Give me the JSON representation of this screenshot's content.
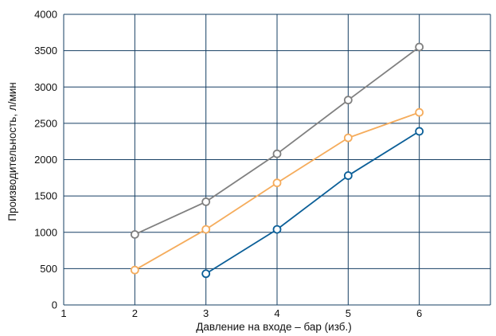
{
  "chart_data": {
    "type": "line",
    "title": "",
    "xlabel": "Давление на входе – бар (изб.)",
    "ylabel": "Производительность, л/мин",
    "xlim": [
      1,
      7
    ],
    "ylim": [
      0,
      4000
    ],
    "x_ticks": [
      1,
      2,
      3,
      4,
      5,
      6
    ],
    "y_ticks": [
      0,
      500,
      1000,
      1500,
      2000,
      2500,
      3000,
      3500,
      4000
    ],
    "grid": true,
    "legend": "none",
    "series": [
      {
        "color": "#808080",
        "points": [
          {
            "x": 2,
            "y": 970
          },
          {
            "x": 3,
            "y": 1420
          },
          {
            "x": 4,
            "y": 2080
          },
          {
            "x": 5,
            "y": 2820
          },
          {
            "x": 6,
            "y": 3550
          }
        ]
      },
      {
        "color": "#f5ac5c",
        "points": [
          {
            "x": 2,
            "y": 480
          },
          {
            "x": 3,
            "y": 1040
          },
          {
            "x": 4,
            "y": 1680
          },
          {
            "x": 5,
            "y": 2300
          },
          {
            "x": 6,
            "y": 2650
          }
        ]
      },
      {
        "color": "#0b5f98",
        "points": [
          {
            "x": 3,
            "y": 430
          },
          {
            "x": 4,
            "y": 1040
          },
          {
            "x": 5,
            "y": 1780
          },
          {
            "x": 6,
            "y": 2390
          }
        ]
      }
    ],
    "colors": {
      "grid": "#163f63",
      "text": "#111111",
      "background": "#ffffff"
    }
  }
}
